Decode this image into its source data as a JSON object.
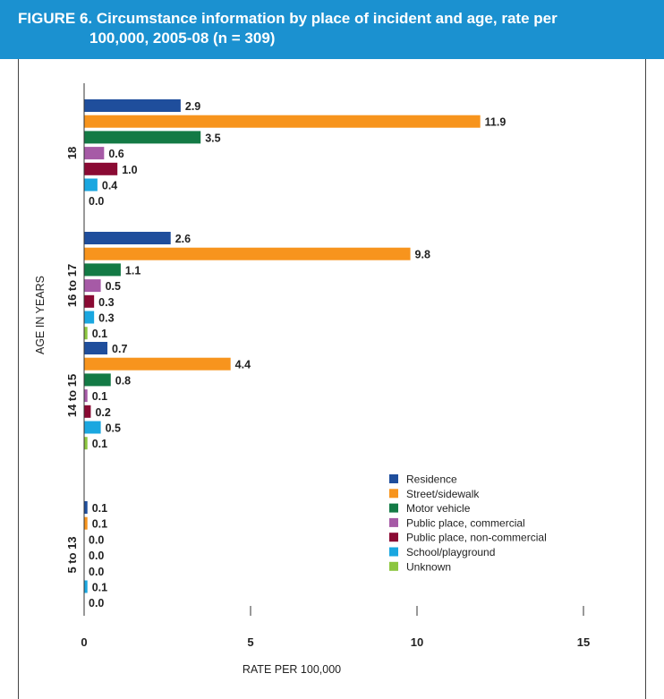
{
  "figure": {
    "label": "FIGURE 6.",
    "title_line1": "Circumstance information by place of incident and age, rate per",
    "title_line2": "100,000, 2005-08 (n = 309)"
  },
  "chart_data": {
    "type": "bar",
    "orientation": "horizontal",
    "xlabel": "RATE PER 100,000",
    "ylabel": "AGE IN YEARS",
    "xlim": [
      0,
      15
    ],
    "xticks": [
      0,
      5,
      10,
      15
    ],
    "grid": false,
    "legend_position": "bottom-right",
    "categories": [
      "18",
      "16 to 17",
      "14 to 15",
      "5 to 13"
    ],
    "value_labels": {
      "18": [
        "2.9",
        "11.9",
        "3.5",
        "0.6",
        "1.0",
        "0.4",
        "0.0"
      ],
      "16 to 17": [
        "2.6",
        "9.8",
        "1.1",
        "0.5",
        "0.3",
        "0.3",
        "0.1"
      ],
      "14 to 15": [
        "0.7",
        "4.4",
        "0.8",
        "0.1",
        "0.2",
        "0.5",
        "0.1"
      ],
      "5 to 13": [
        "0.1",
        "0.1",
        "0.0",
        "0.0",
        "0.0",
        "0.1",
        "0.0"
      ]
    },
    "series": [
      {
        "name": "Residence",
        "color": "#1f4e9c",
        "values": [
          2.9,
          2.6,
          0.7,
          0.1
        ]
      },
      {
        "name": "Street/sidewalk",
        "color": "#f7941d",
        "values": [
          11.9,
          9.8,
          4.4,
          0.1
        ]
      },
      {
        "name": "Motor vehicle",
        "color": "#137a45",
        "values": [
          3.5,
          1.1,
          0.8,
          0.0
        ]
      },
      {
        "name": "Public place, commercial",
        "color": "#a65aa6",
        "values": [
          0.6,
          0.5,
          0.1,
          0.0
        ]
      },
      {
        "name": "Public place, non-commercial",
        "color": "#8a0a33",
        "values": [
          1.0,
          0.3,
          0.2,
          0.0
        ]
      },
      {
        "name": "School/playground",
        "color": "#1aa7e0",
        "values": [
          0.4,
          0.3,
          0.5,
          0.1
        ]
      },
      {
        "name": "Unknown",
        "color": "#8cc63f",
        "values": [
          0.0,
          0.1,
          0.1,
          0.0
        ]
      }
    ]
  }
}
